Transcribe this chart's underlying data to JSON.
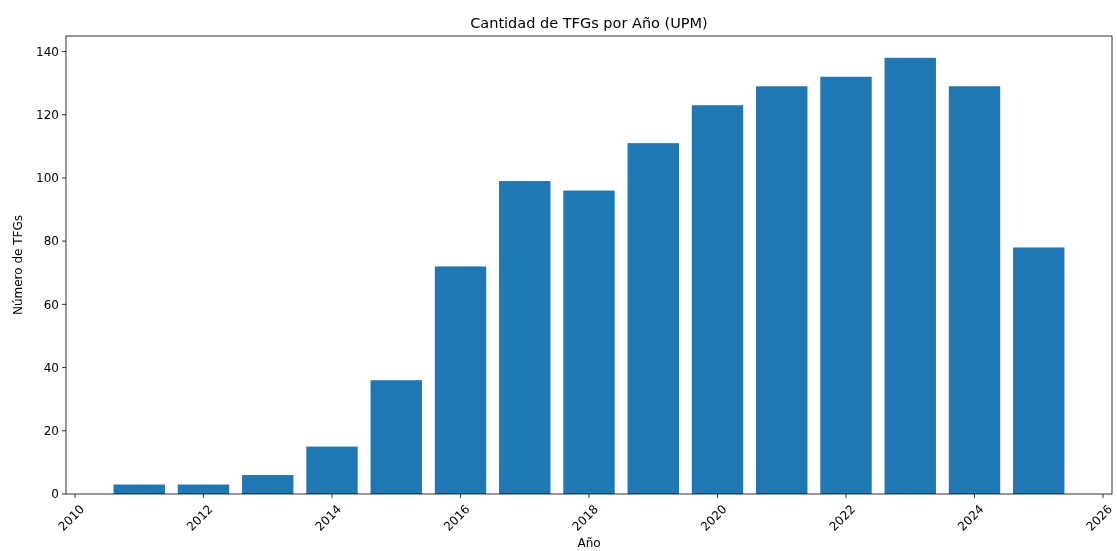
{
  "chart_data": {
    "type": "bar",
    "title": "Cantidad de TFGs por Año (UPM)",
    "xlabel": "Año",
    "ylabel": "Número de TFGs",
    "x": [
      2011,
      2012,
      2013,
      2014,
      2015,
      2016,
      2017,
      2018,
      2019,
      2020,
      2021,
      2022,
      2023,
      2024,
      2025
    ],
    "values": [
      3,
      3,
      6,
      15,
      36,
      72,
      99,
      96,
      111,
      123,
      129,
      132,
      138,
      129,
      78
    ],
    "color": "#1f77b4",
    "xlim": [
      2009.86,
      2026.14
    ],
    "xticks": [
      2010,
      2012,
      2014,
      2016,
      2018,
      2020,
      2022,
      2024,
      2026
    ],
    "ylim": [
      0,
      144.9
    ],
    "yticks": [
      0,
      20,
      40,
      60,
      80,
      100,
      120,
      140
    ]
  }
}
